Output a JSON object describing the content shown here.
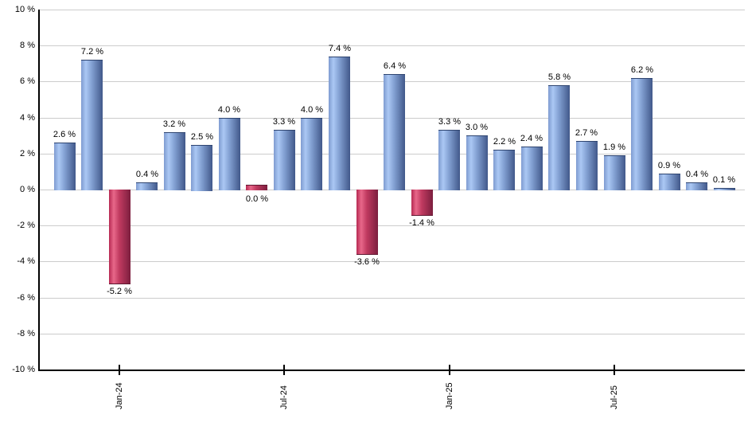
{
  "chart_data": {
    "type": "bar",
    "title": "",
    "xlabel": "",
    "ylabel": "",
    "ylim": [
      -10,
      10
    ],
    "grid": "horizontal",
    "legend": "none",
    "y_ticks": [
      {
        "value": 10,
        "label": "10 %"
      },
      {
        "value": 8,
        "label": "8 %"
      },
      {
        "value": 6,
        "label": "6 %"
      },
      {
        "value": 4,
        "label": "4 %"
      },
      {
        "value": 2,
        "label": "2 %"
      },
      {
        "value": 0,
        "label": "0 %"
      },
      {
        "value": -2,
        "label": "-2 %"
      },
      {
        "value": -4,
        "label": "-4 %"
      },
      {
        "value": -6,
        "label": "-6 %"
      },
      {
        "value": -8,
        "label": "-8 %"
      },
      {
        "value": -10,
        "label": "-10 %"
      }
    ],
    "x_ticks": [
      {
        "index": 2,
        "label": "Jan-24"
      },
      {
        "index": 8,
        "label": "Jul-24"
      },
      {
        "index": 14,
        "label": "Jan-25"
      },
      {
        "index": 20,
        "label": "Jul-25"
      }
    ],
    "bars": [
      {
        "value": 2.6,
        "label": "2.6 %"
      },
      {
        "value": 7.2,
        "label": "7.2 %"
      },
      {
        "value": -5.2,
        "label": "-5.2 %"
      },
      {
        "value": 0.4,
        "label": "0.4 %"
      },
      {
        "value": 3.2,
        "label": "3.2 %"
      },
      {
        "value": 2.5,
        "label": "2.5 %"
      },
      {
        "value": 4.0,
        "label": "4.0 %"
      },
      {
        "value": 0.0,
        "label": "0.0 %"
      },
      {
        "value": 3.3,
        "label": "3.3 %"
      },
      {
        "value": 4.0,
        "label": "4.0 %"
      },
      {
        "value": 7.4,
        "label": "7.4 %"
      },
      {
        "value": -3.6,
        "label": "-3.6 %"
      },
      {
        "value": 6.4,
        "label": "6.4 %"
      },
      {
        "value": -1.4,
        "label": "-1.4 %"
      },
      {
        "value": 3.3,
        "label": "3.3 %"
      },
      {
        "value": 3.0,
        "label": "3.0 %"
      },
      {
        "value": 2.2,
        "label": "2.2 %"
      },
      {
        "value": 2.4,
        "label": "2.4 %"
      },
      {
        "value": 5.8,
        "label": "5.8 %"
      },
      {
        "value": 2.7,
        "label": "2.7 %"
      },
      {
        "value": 1.9,
        "label": "1.9 %"
      },
      {
        "value": 6.2,
        "label": "6.2 %"
      },
      {
        "value": 0.9,
        "label": "0.9 %"
      },
      {
        "value": 0.4,
        "label": "0.4 %"
      },
      {
        "value": 0.1,
        "label": "0.1 %"
      }
    ],
    "colors": {
      "positive_edge": "#7E9BD0",
      "positive_light": "#ABC8F4",
      "positive_mid": "#84A2D4",
      "positive_dark": "#41588A",
      "positive_border": "#2F4570",
      "negative_edge": "#B62952",
      "negative_light": "#E8688A",
      "negative_mid": "#C03A60",
      "negative_dark": "#7C1E3E",
      "negative_border": "#5F1730",
      "grid": "#CCCCCC",
      "axis": "#000000",
      "label": "#000000"
    }
  }
}
